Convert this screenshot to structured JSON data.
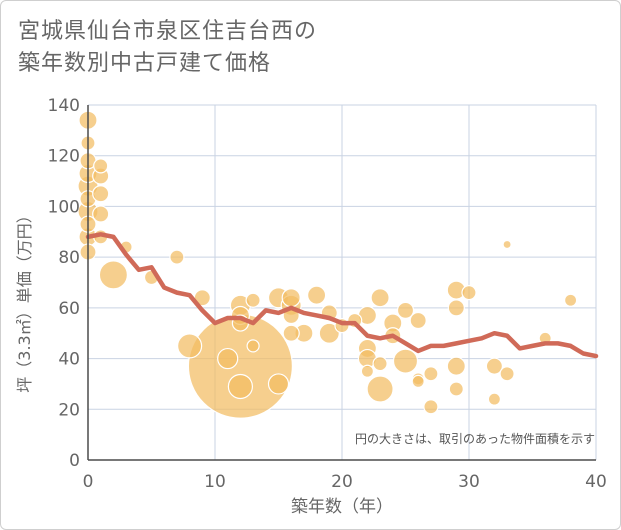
{
  "chart_data": {
    "type": "scatter",
    "title_lines": [
      "宮城県仙台市泉区住吉台西の",
      "築年数別中古戸建て価格"
    ],
    "xlabel": "築年数（年）",
    "ylabel": "坪（3.3㎡）単価（万円）",
    "xlim": [
      0,
      40
    ],
    "ylim": [
      0,
      140
    ],
    "xticks": [
      "0",
      "10",
      "20",
      "30",
      "40"
    ],
    "yticks": [
      "0",
      "20",
      "40",
      "60",
      "80",
      "100",
      "120",
      "140"
    ],
    "grid": true,
    "note": "円の大きさは、取引のあった物件面積を示す",
    "colors": {
      "bubble": "#f3bd62",
      "line": "#d06a58",
      "axis": "#4b4b4b",
      "grid": "#c9d3e3",
      "text": "#666666"
    },
    "bubbles": [
      {
        "x": 0,
        "y": 134,
        "s": 9
      },
      {
        "x": 0,
        "y": 125,
        "s": 7
      },
      {
        "x": 0,
        "y": 118,
        "s": 8
      },
      {
        "x": 0,
        "y": 113,
        "s": 9
      },
      {
        "x": 0,
        "y": 108,
        "s": 10
      },
      {
        "x": 0,
        "y": 103,
        "s": 8
      },
      {
        "x": 0,
        "y": 98,
        "s": 10
      },
      {
        "x": 0,
        "y": 93,
        "s": 8
      },
      {
        "x": 0,
        "y": 88,
        "s": 9
      },
      {
        "x": 0,
        "y": 82,
        "s": 8
      },
      {
        "x": 1,
        "y": 116,
        "s": 7
      },
      {
        "x": 1,
        "y": 112,
        "s": 8
      },
      {
        "x": 1,
        "y": 105,
        "s": 8
      },
      {
        "x": 1,
        "y": 97,
        "s": 8
      },
      {
        "x": 1,
        "y": 88,
        "s": 7
      },
      {
        "x": 2,
        "y": 73,
        "s": 14
      },
      {
        "x": 3,
        "y": 84,
        "s": 6
      },
      {
        "x": 5,
        "y": 72,
        "s": 7
      },
      {
        "x": 7,
        "y": 80,
        "s": 7
      },
      {
        "x": 8,
        "y": 45,
        "s": 12
      },
      {
        "x": 9,
        "y": 64,
        "s": 8
      },
      {
        "x": 11,
        "y": 40,
        "s": 10
      },
      {
        "x": 12,
        "y": 61,
        "s": 10
      },
      {
        "x": 12,
        "y": 57,
        "s": 9
      },
      {
        "x": 12,
        "y": 54,
        "s": 8
      },
      {
        "x": 12,
        "y": 37,
        "s": 52
      },
      {
        "x": 12,
        "y": 29,
        "s": 12
      },
      {
        "x": 13,
        "y": 63,
        "s": 7
      },
      {
        "x": 13,
        "y": 45,
        "s": 6
      },
      {
        "x": 15,
        "y": 64,
        "s": 10
      },
      {
        "x": 15,
        "y": 30,
        "s": 10
      },
      {
        "x": 16,
        "y": 64,
        "s": 9
      },
      {
        "x": 16,
        "y": 61,
        "s": 10
      },
      {
        "x": 16,
        "y": 57,
        "s": 8
      },
      {
        "x": 16,
        "y": 50,
        "s": 8
      },
      {
        "x": 17,
        "y": 50,
        "s": 9
      },
      {
        "x": 18,
        "y": 65,
        "s": 9
      },
      {
        "x": 19,
        "y": 58,
        "s": 8
      },
      {
        "x": 19,
        "y": 50,
        "s": 10
      },
      {
        "x": 20,
        "y": 53,
        "s": 7
      },
      {
        "x": 21,
        "y": 55,
        "s": 7
      },
      {
        "x": 22,
        "y": 57,
        "s": 9
      },
      {
        "x": 22,
        "y": 44,
        "s": 9
      },
      {
        "x": 22,
        "y": 40,
        "s": 9
      },
      {
        "x": 22,
        "y": 35,
        "s": 6
      },
      {
        "x": 23,
        "y": 64,
        "s": 9
      },
      {
        "x": 23,
        "y": 38,
        "s": 7
      },
      {
        "x": 23,
        "y": 28,
        "s": 13
      },
      {
        "x": 24,
        "y": 54,
        "s": 9
      },
      {
        "x": 24,
        "y": 49,
        "s": 8
      },
      {
        "x": 25,
        "y": 59,
        "s": 8
      },
      {
        "x": 25,
        "y": 39,
        "s": 12
      },
      {
        "x": 26,
        "y": 55,
        "s": 8
      },
      {
        "x": 26,
        "y": 32,
        "s": 6
      },
      {
        "x": 26,
        "y": 31,
        "s": 6
      },
      {
        "x": 27,
        "y": 34,
        "s": 7
      },
      {
        "x": 27,
        "y": 21,
        "s": 7
      },
      {
        "x": 29,
        "y": 67,
        "s": 9
      },
      {
        "x": 29,
        "y": 60,
        "s": 8
      },
      {
        "x": 29,
        "y": 37,
        "s": 9
      },
      {
        "x": 29,
        "y": 28,
        "s": 7
      },
      {
        "x": 30,
        "y": 66,
        "s": 7
      },
      {
        "x": 32,
        "y": 37,
        "s": 8
      },
      {
        "x": 32,
        "y": 24,
        "s": 6
      },
      {
        "x": 33,
        "y": 85,
        "s": 4
      },
      {
        "x": 33,
        "y": 34,
        "s": 7
      },
      {
        "x": 36,
        "y": 48,
        "s": 6
      },
      {
        "x": 38,
        "y": 63,
        "s": 6
      }
    ],
    "trend": {
      "x": [
        0,
        1,
        2,
        3,
        4,
        5,
        6,
        7,
        8,
        9,
        10,
        11,
        12,
        13,
        14,
        15,
        16,
        17,
        18,
        19,
        20,
        21,
        22,
        23,
        24,
        25,
        26,
        27,
        28,
        29,
        30,
        31,
        32,
        33,
        34,
        35,
        36,
        37,
        38,
        39,
        40
      ],
      "y": [
        88,
        89,
        88,
        81,
        75,
        76,
        68,
        66,
        65,
        59,
        54,
        56,
        56,
        54,
        59,
        58,
        60,
        58,
        57,
        56,
        54,
        54,
        49,
        48,
        49,
        46,
        43,
        45,
        45,
        46,
        47,
        48,
        50,
        49,
        44,
        45,
        46,
        46,
        45,
        42,
        41
      ]
    }
  }
}
